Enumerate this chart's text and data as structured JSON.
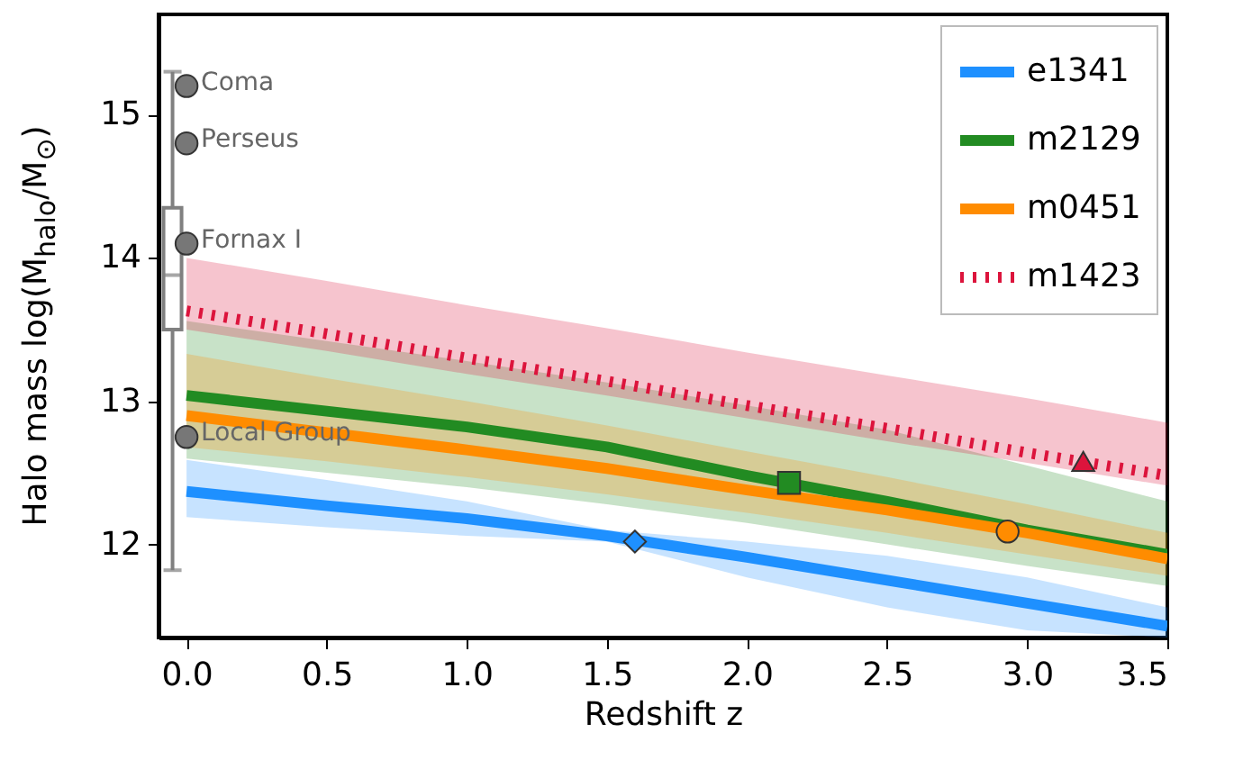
{
  "chart_data": {
    "type": "line",
    "xlabel": "Redshift z",
    "ylabel": "Halo mass log(M$_{halo}$/M$_{⊙}$)",
    "xlim": [
      -0.1,
      3.5
    ],
    "ylim": [
      11.35,
      15.7
    ],
    "xticks": [
      {
        "value": 0,
        "label": "0.0"
      },
      0.5,
      {
        "value": 1,
        "label": "1.0"
      },
      1.5,
      {
        "value": 2,
        "label": "2.0"
      },
      2.5,
      {
        "value": 3,
        "label": "3.0"
      },
      3.5
    ],
    "yticks": [
      12,
      13,
      14,
      15
    ],
    "grid": false,
    "legend": "top right",
    "series": [
      {
        "type": "box",
        "color": "#808080",
        "x": [
          -0.05
        ],
        "boxes": [
          {
            "low": 11.82,
            "q1": 13.5,
            "median": 13.88,
            "q3": 14.35,
            "high": 15.3
          }
        ]
      },
      {
        "name": "e1341",
        "type": "line",
        "line_style": "solid",
        "color": "#1e90ff",
        "x": [
          0,
          0.5,
          1,
          1.5,
          2,
          2.5,
          3,
          3.5
        ],
        "values": [
          12.37,
          12.27,
          12.18,
          12.06,
          11.91,
          11.75,
          11.59,
          11.43
        ],
        "lower": [
          12.19,
          12.12,
          12.06,
          12.02,
          11.77,
          11.56,
          11.4,
          11.35
        ],
        "upper": [
          12.59,
          12.45,
          12.3,
          12.1,
          12.02,
          11.92,
          11.77,
          11.56
        ]
      },
      {
        "name": "m2129",
        "type": "line",
        "line_style": "solid",
        "color": "#228b22",
        "x": [
          0,
          0.5,
          1,
          1.5,
          2,
          2.5,
          3,
          3.5
        ],
        "values": [
          13.04,
          12.93,
          12.82,
          12.68,
          12.48,
          12.3,
          12.1,
          11.93
        ],
        "lower": [
          12.6,
          12.5,
          12.4,
          12.28,
          12.15,
          12.0,
          11.85,
          11.71
        ],
        "upper": [
          13.56,
          13.42,
          13.28,
          13.13,
          12.97,
          12.8,
          12.55,
          12.3
        ]
      },
      {
        "name": "m0451",
        "type": "line",
        "line_style": "solid",
        "color": "#ff8c00",
        "x": [
          0,
          0.5,
          1,
          1.5,
          2,
          2.5,
          3,
          3.5
        ],
        "values": [
          12.9,
          12.78,
          12.66,
          12.53,
          12.38,
          12.24,
          12.08,
          11.9
        ],
        "lower": [
          12.68,
          12.58,
          12.47,
          12.35,
          12.22,
          12.08,
          11.93,
          11.78
        ],
        "upper": [
          13.33,
          13.16,
          13.0,
          12.83,
          12.65,
          12.47,
          12.28,
          12.08
        ]
      },
      {
        "name": "m1423",
        "type": "line",
        "line_style": "dotted",
        "color": "#dc143c",
        "x": [
          0,
          0.5,
          1,
          1.5,
          2,
          2.5,
          3,
          3.5
        ],
        "values": [
          13.63,
          13.47,
          13.3,
          13.14,
          12.97,
          12.81,
          12.64,
          12.48
        ],
        "lower": [
          13.5,
          13.35,
          13.19,
          13.04,
          12.88,
          12.72,
          12.57,
          12.41
        ],
        "upper": [
          14.0,
          13.84,
          13.67,
          13.51,
          13.34,
          13.18,
          13.02,
          12.85
        ]
      },
      {
        "type": "scatter",
        "marker": "diamond",
        "color": "#1e90ff",
        "x": [
          1.6
        ],
        "values": [
          12.02
        ]
      },
      {
        "type": "scatter",
        "marker": "square",
        "color": "#228b22",
        "x": [
          2.15
        ],
        "values": [
          12.43
        ]
      },
      {
        "type": "scatter",
        "marker": "circle",
        "color": "#ff8c00",
        "x": [
          2.93
        ],
        "values": [
          12.09
        ]
      },
      {
        "type": "scatter",
        "marker": "triangle",
        "color": "#dc143c",
        "x": [
          3.2
        ],
        "values": [
          12.58
        ]
      },
      {
        "type": "scatter",
        "marker": "circle",
        "color": "#777777",
        "x": [
          0,
          0,
          0,
          0
        ],
        "values": [
          15.2,
          14.8,
          14.1,
          12.75
        ],
        "value_labels": [
          "Coma",
          "Perseus",
          "Fornax I",
          "Local Group"
        ]
      }
    ]
  }
}
